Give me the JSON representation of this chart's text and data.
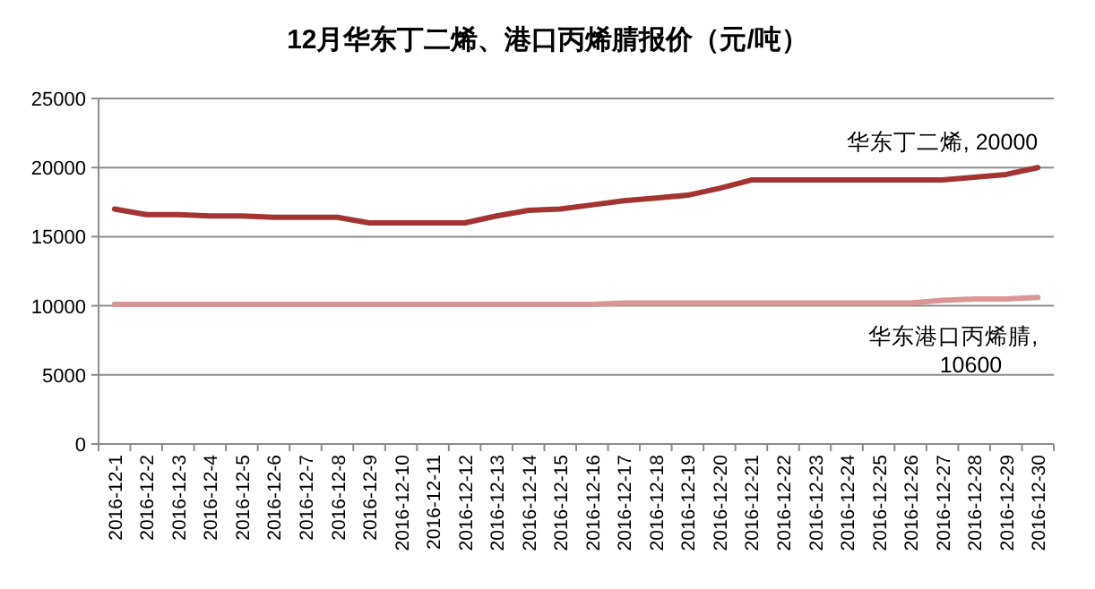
{
  "chart_data": {
    "type": "line",
    "title": "12月华东丁二烯、港口丙烯腈报价（元/吨）",
    "categories": [
      "2016-12-1",
      "2016-12-2",
      "2016-12-3",
      "2016-12-4",
      "2016-12-5",
      "2016-12-6",
      "2016-12-7",
      "2016-12-8",
      "2016-12-9",
      "2016-12-10",
      "2016-12-11",
      "2016-12-12",
      "2016-12-13",
      "2016-12-14",
      "2016-12-15",
      "2016-12-16",
      "2016-12-17",
      "2016-12-18",
      "2016-12-19",
      "2016-12-20",
      "2016-12-21",
      "2016-12-22",
      "2016-12-23",
      "2016-12-24",
      "2016-12-25",
      "2016-12-26",
      "2016-12-27",
      "2016-12-28",
      "2016-12-29",
      "2016-12-30"
    ],
    "series": [
      {
        "color": "#a33432",
        "values": [
          17000,
          16600,
          16600,
          16500,
          16500,
          16400,
          16400,
          16400,
          16000,
          16000,
          16000,
          16000,
          16500,
          16900,
          17000,
          17300,
          17600,
          17800,
          18000,
          18500,
          19100,
          19100,
          19100,
          19100,
          19100,
          19100,
          19100,
          19300,
          19500,
          20000
        ]
      },
      {
        "color": "#d99694",
        "values": [
          10100,
          10100,
          10100,
          10100,
          10100,
          10100,
          10100,
          10100,
          10100,
          10100,
          10100,
          10100,
          10100,
          10100,
          10100,
          10100,
          10200,
          10200,
          10200,
          10200,
          10200,
          10200,
          10200,
          10200,
          10200,
          10200,
          10400,
          10500,
          10500,
          10600
        ]
      }
    ],
    "annotations": [
      {
        "text": "华东丁二烯, 20000",
        "x": "2016-12-30",
        "y": 20000
      },
      {
        "text": "华东港口丙烯腈, 10600",
        "x": "2016-12-30",
        "y": 10600
      }
    ],
    "ylim": [
      0,
      25000
    ],
    "yticks": [
      0,
      5000,
      10000,
      15000,
      20000,
      25000
    ],
    "grid": "y",
    "marker": "none",
    "line_style": "solid"
  }
}
